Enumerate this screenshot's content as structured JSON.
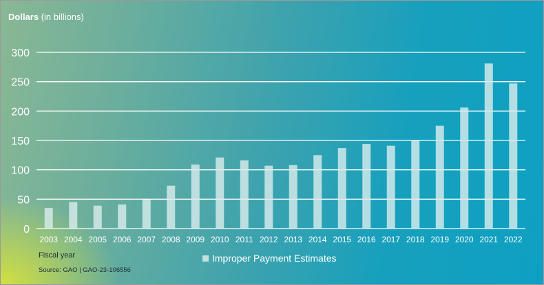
{
  "chart_data": {
    "type": "bar",
    "ylabel_bold": "Dollars",
    "ylabel_rest": "(in billions)",
    "xlabel": "Fiscal year",
    "legend": "Improper Payment Estimates",
    "source": "Source: GAO | GAO-23-106556",
    "categories": [
      "2003",
      "2004",
      "2005",
      "2006",
      "2007",
      "2008",
      "2009",
      "2010",
      "2011",
      "2012",
      "2013",
      "2014",
      "2015",
      "2016",
      "2017",
      "2018",
      "2019",
      "2020",
      "2021",
      "2022"
    ],
    "series": [
      {
        "name": "Improper Payment Estimates",
        "values": [
          35,
          45,
          39,
          41,
          49,
          73,
          109,
          121,
          116,
          107,
          108,
          125,
          137,
          144,
          141,
          151,
          175,
          206,
          281,
          247
        ]
      }
    ],
    "yticks": [
      0,
      50,
      100,
      150,
      200,
      250,
      300
    ],
    "ylim": [
      0,
      300
    ],
    "grid": true,
    "colors": {
      "bar": "#d7ecec",
      "grid": "#ffffff",
      "text": "#ffffff",
      "footnote": "#1e2f3a"
    }
  }
}
